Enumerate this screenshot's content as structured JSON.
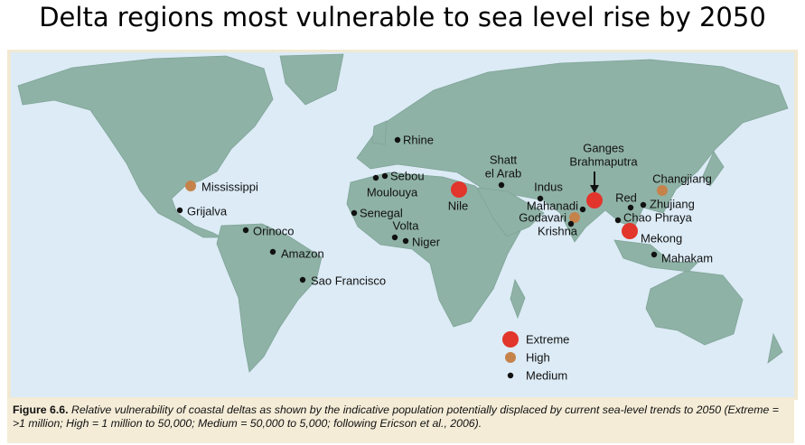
{
  "title": "Delta regions most vulnerable to sea level rise by 2050",
  "legend": [
    {
      "label": "Extreme",
      "color": "#e2352b"
    },
    {
      "label": "High",
      "color": "#c5834b"
    },
    {
      "label": "Medium",
      "color": "#111111"
    }
  ],
  "deltas": [
    {
      "label": [
        "Rhine"
      ],
      "level": 2
    },
    {
      "label": [
        "Sebou"
      ],
      "level": 2
    },
    {
      "label": [
        "Moulouya"
      ],
      "level": 2
    },
    {
      "label": [
        "Senegal"
      ],
      "level": 2
    },
    {
      "label": [
        "Volta"
      ],
      "level": 2
    },
    {
      "label": [
        "Niger"
      ],
      "level": 2
    },
    {
      "label": [
        "Nile"
      ],
      "level": 0
    },
    {
      "label": [
        "Shatt",
        "el Arab"
      ],
      "level": 2
    },
    {
      "label": [
        "Indus"
      ],
      "level": 2
    },
    {
      "label": [
        "Ganges",
        "Brahmaputra"
      ],
      "level": 0
    },
    {
      "label": [
        "Mahanadi"
      ],
      "level": 2
    },
    {
      "label": [
        "Godavari"
      ],
      "level": 1
    },
    {
      "label": [
        "Krishna"
      ],
      "level": 2
    },
    {
      "label": [
        "Changjiang"
      ],
      "level": 1
    },
    {
      "label": [
        "Red"
      ],
      "level": 2
    },
    {
      "label": [
        "Zhujiang"
      ],
      "level": 2
    },
    {
      "label": [
        "Chao Phraya"
      ],
      "level": 2
    },
    {
      "label": [
        "Mekong"
      ],
      "level": 0
    },
    {
      "label": [
        "Mahakam"
      ],
      "level": 2
    },
    {
      "label": [
        "Mississippi"
      ],
      "level": 1
    },
    {
      "label": [
        "Grijalva"
      ],
      "level": 2
    },
    {
      "label": [
        "Orinoco"
      ],
      "level": 2
    },
    {
      "label": [
        "Amazon"
      ],
      "level": 2
    },
    {
      "label": [
        "Sao Francisco"
      ],
      "level": 2
    }
  ],
  "caption": {
    "label": "Figure 6.6.",
    "text": "Relative vulnerability of coastal deltas as shown by the indicative population potentially displaced by current sea-level trends to 2050 (Extreme = >1 million; High = 1 million to 50,000; Medium = 50,000 to 5,000; following Ericson et al., 2006)."
  }
}
